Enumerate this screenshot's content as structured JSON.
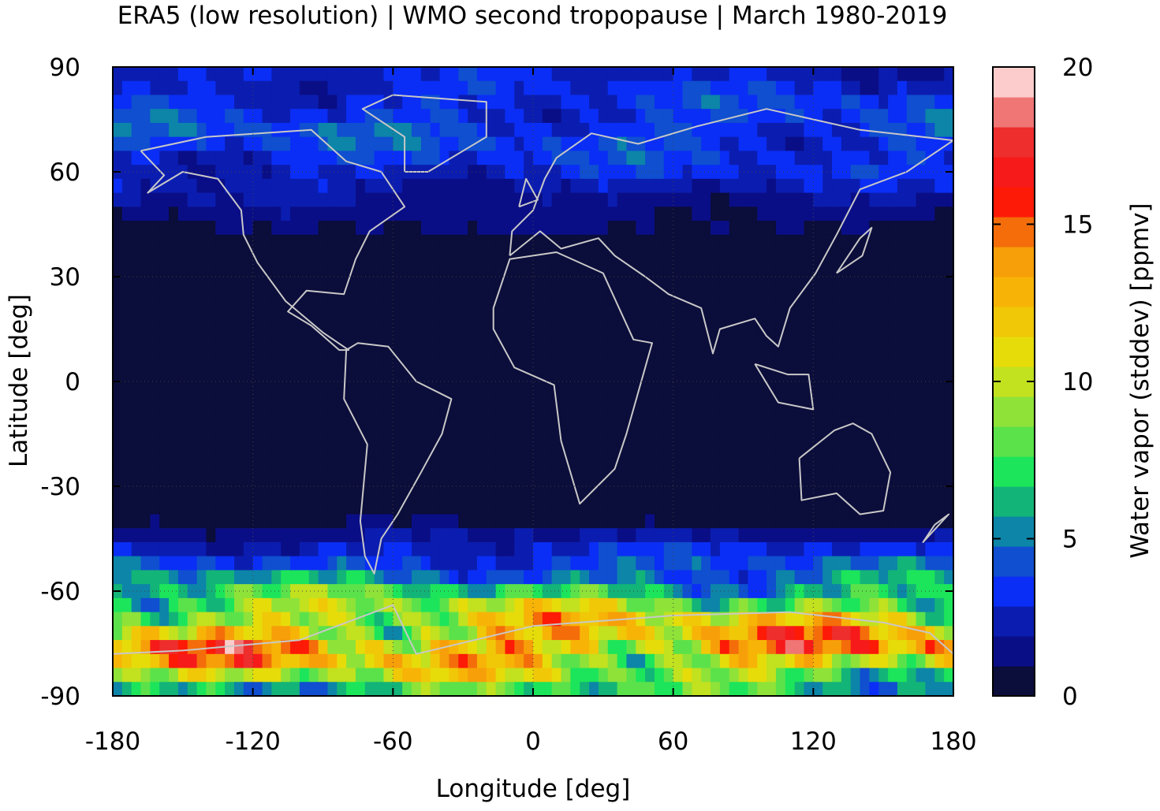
{
  "chart_data": {
    "type": "heatmap",
    "title": "ERA5 (low resolution) | WMO second tropopause | March 1980-2019",
    "xlabel": "Longitude [deg]",
    "ylabel": "Latitude [deg]",
    "xlim": [
      -180,
      180
    ],
    "ylim": [
      -90,
      90
    ],
    "xticks": [
      -180,
      -120,
      -60,
      0,
      60,
      120,
      180
    ],
    "yticks": [
      90,
      60,
      30,
      0,
      -30,
      -60,
      -90
    ],
    "grid": true,
    "colorbar": {
      "label": "Water vapor (stddev) [ppmv]",
      "range": [
        0,
        20
      ],
      "ticks": [
        20,
        15,
        10,
        5,
        0
      ],
      "colors": [
        "#0b0d3a",
        "#0a0e86",
        "#0b1db0",
        "#0a2ef5",
        "#0f4fd0",
        "#0c85a8",
        "#13b478",
        "#1ce55b",
        "#5be24a",
        "#8fe238",
        "#c2e11f",
        "#e6dc0a",
        "#f0c808",
        "#f7b407",
        "#f79f08",
        "#f46d0a",
        "#fd1a06",
        "#f71a1a",
        "#ee2d2d",
        "#f07575",
        "#fccccc"
      ]
    },
    "zonal_profile": [
      {
        "lat": 90,
        "value": 2.5
      },
      {
        "lat": 80,
        "value": 3.5
      },
      {
        "lat": 70,
        "value": 4.0
      },
      {
        "lat": 60,
        "value": 3.0
      },
      {
        "lat": 50,
        "value": 1.5
      },
      {
        "lat": 40,
        "value": 0.6
      },
      {
        "lat": 30,
        "value": 0.2
      },
      {
        "lat": 0,
        "value": 0.1
      },
      {
        "lat": -30,
        "value": 0.2
      },
      {
        "lat": -40,
        "value": 0.8
      },
      {
        "lat": -45,
        "value": 2.0
      },
      {
        "lat": -55,
        "value": 5.0
      },
      {
        "lat": -62,
        "value": 8.0
      },
      {
        "lat": -70,
        "value": 12.0
      },
      {
        "lat": -77,
        "value": 14.0
      },
      {
        "lat": -85,
        "value": 9.0
      },
      {
        "lat": -90,
        "value": 6.0
      }
    ]
  }
}
